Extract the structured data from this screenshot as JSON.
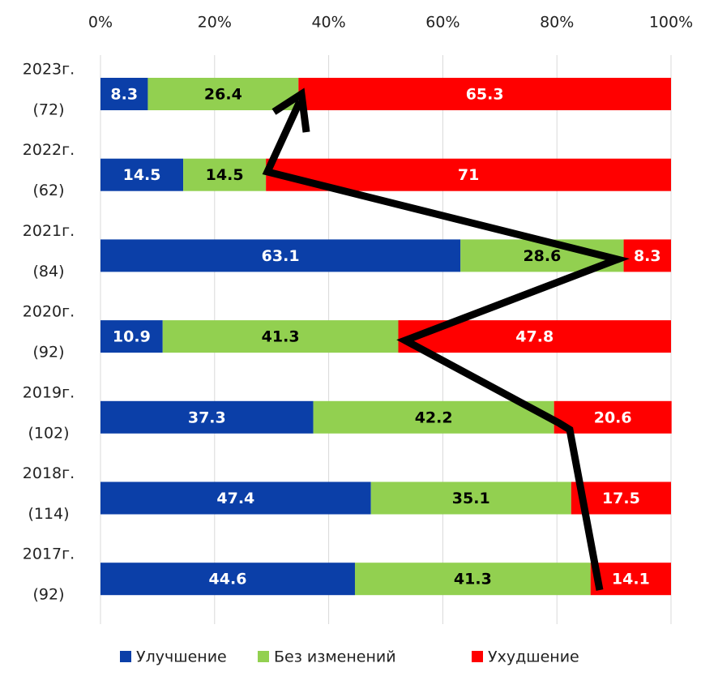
{
  "chart_data": {
    "type": "stacked-bar-horizontal",
    "categories": [
      [
        "2023г.",
        "(72)"
      ],
      [
        "2022г.",
        "(62)"
      ],
      [
        "2021г.",
        "(84)"
      ],
      [
        "2020г.",
        "(92)"
      ],
      [
        "2019г.",
        "(102)"
      ],
      [
        "2018г.",
        "(114)"
      ],
      [
        "2017г.",
        "(92)"
      ]
    ],
    "series": [
      {
        "name": "Улучшение",
        "color": "#0b3fa8",
        "label_color": "#ffffff",
        "values": [
          8.3,
          14.5,
          63.1,
          10.9,
          37.3,
          47.4,
          44.6
        ]
      },
      {
        "name": "Без изменений",
        "color": "#92d050",
        "label_color": "#000000",
        "values": [
          26.4,
          14.5,
          28.6,
          41.3,
          42.2,
          35.1,
          41.3
        ]
      },
      {
        "name": "Ухудшение",
        "color": "#ff0000",
        "label_color": "#ffffff",
        "values": [
          65.3,
          71,
          8.3,
          47.8,
          20.6,
          17.5,
          14.1
        ]
      }
    ],
    "xlim": [
      0,
      100
    ],
    "xticks": [
      {
        "value": 0,
        "label": "0%"
      },
      {
        "value": 20,
        "label": "20%"
      },
      {
        "value": 40,
        "label": "40%"
      },
      {
        "value": 60,
        "label": "60%"
      },
      {
        "value": 80,
        "label": "80%"
      },
      {
        "value": 100,
        "label": "100%"
      }
    ],
    "grid": true
  }
}
